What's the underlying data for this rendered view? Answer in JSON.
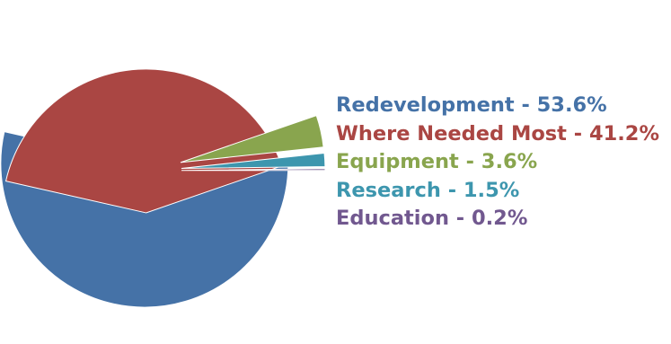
{
  "chart_data": {
    "type": "pie",
    "slices": [
      {
        "label": "Redevelopment",
        "value": 53.6,
        "color": "#4572a7"
      },
      {
        "label": "Where Needed Most",
        "value": 41.2,
        "color": "#aa4643"
      },
      {
        "label": "Equipment",
        "value": 3.6,
        "color": "#89a54e"
      },
      {
        "label": "Research",
        "value": 1.5,
        "color": "#3d96ae"
      },
      {
        "label": "Education",
        "value": 0.2,
        "color": "#71588f"
      }
    ],
    "legend": {
      "placement": "right",
      "items": [
        "Redevelopment - 53.6%",
        "Where Needed Most - 41.2%",
        "Equipment - 3.6%",
        "Research - 1.5%",
        "Education - 0.2%"
      ]
    }
  }
}
